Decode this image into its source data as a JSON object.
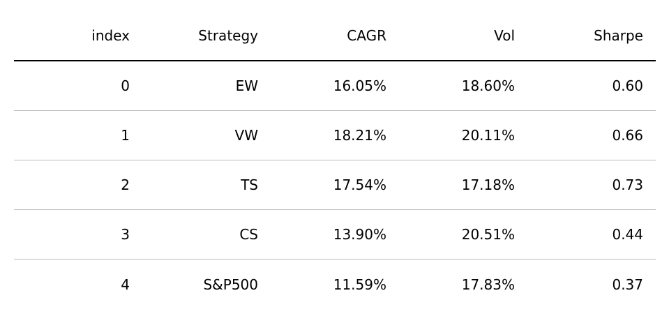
{
  "chart_data": {
    "type": "table",
    "columns": [
      "index",
      "Strategy",
      "CAGR",
      "Vol",
      "Sharpe"
    ],
    "rows": [
      [
        "0",
        "EW",
        "16.05%",
        "18.60%",
        "0.60"
      ],
      [
        "1",
        "VW",
        "18.21%",
        "20.11%",
        "0.66"
      ],
      [
        "2",
        "TS",
        "17.54%",
        "17.18%",
        "0.73"
      ],
      [
        "3",
        "CS",
        "13.90%",
        "20.51%",
        "0.44"
      ],
      [
        "4",
        "S&P500",
        "11.59%",
        "17.83%",
        "0.37"
      ]
    ]
  },
  "colors": {
    "header_rule": "#000000",
    "row_rule": "#bdbdbd",
    "text": "#000000",
    "background": "#ffffff"
  }
}
